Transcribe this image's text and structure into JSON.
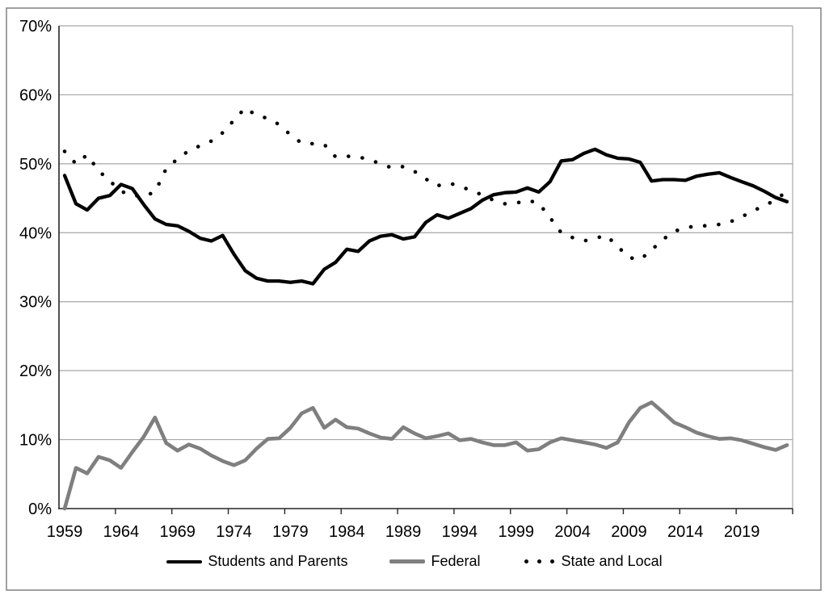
{
  "chart_data": {
    "type": "line",
    "title": "",
    "xlabel": "",
    "ylabel": "",
    "grid": "horizontal",
    "legend_position": "bottom",
    "x_axis": {
      "tick_labels": [
        "1959",
        "1964",
        "1969",
        "1974",
        "1979",
        "1984",
        "1989",
        "1994",
        "1999",
        "2004",
        "2009",
        "2014",
        "2019"
      ],
      "first_year": 1959,
      "last_year": 2023
    },
    "y_axis": {
      "tick_labels": [
        "0%",
        "10%",
        "20%",
        "30%",
        "40%",
        "50%",
        "60%",
        "70%"
      ],
      "min": 0,
      "max": 70,
      "tick_interval": 10,
      "unit": "%"
    },
    "years": [
      1959,
      1960,
      1961,
      1962,
      1963,
      1964,
      1965,
      1966,
      1967,
      1968,
      1969,
      1970,
      1971,
      1972,
      1973,
      1974,
      1975,
      1976,
      1977,
      1978,
      1979,
      1980,
      1981,
      1982,
      1983,
      1984,
      1985,
      1986,
      1987,
      1988,
      1989,
      1990,
      1991,
      1992,
      1993,
      1994,
      1995,
      1996,
      1997,
      1998,
      1999,
      2000,
      2001,
      2002,
      2003,
      2004,
      2005,
      2006,
      2007,
      2008,
      2009,
      2010,
      2011,
      2012,
      2013,
      2014,
      2015,
      2016,
      2017,
      2018,
      2019,
      2020,
      2021,
      2022,
      2023
    ],
    "series": [
      {
        "name": "Students and Parents",
        "color": "#000000",
        "line_style": "solid",
        "line_width": 4.3,
        "values": [
          48.3,
          44.2,
          43.3,
          45.0,
          45.4,
          47.0,
          46.4,
          44.1,
          42.0,
          41.2,
          41.0,
          40.2,
          39.2,
          38.8,
          39.6,
          36.9,
          34.5,
          33.4,
          33.0,
          33.0,
          32.8,
          33.0,
          32.6,
          34.7,
          35.7,
          37.6,
          37.3,
          38.8,
          39.5,
          39.7,
          39.1,
          39.4,
          41.5,
          42.6,
          42.1,
          42.8,
          43.5,
          44.7,
          45.5,
          45.8,
          45.9,
          46.5,
          45.9,
          47.4,
          50.4,
          50.6,
          51.5,
          52.1,
          51.3,
          50.8,
          50.7,
          50.2,
          47.5,
          47.7,
          47.7,
          47.6,
          48.2,
          48.5,
          48.7,
          48.0,
          47.4,
          46.8,
          46.0,
          45.1,
          44.5
        ]
      },
      {
        "name": "Federal",
        "color": "#7F7F7F",
        "line_style": "solid",
        "line_width": 4.6,
        "values": [
          0.0,
          5.9,
          5.1,
          7.5,
          7.0,
          5.9,
          8.2,
          10.4,
          13.2,
          9.5,
          8.4,
          9.3,
          8.7,
          7.7,
          6.9,
          6.3,
          7.0,
          8.7,
          10.1,
          10.2,
          11.7,
          13.8,
          14.6,
          11.7,
          12.9,
          11.8,
          11.6,
          10.9,
          10.3,
          10.1,
          11.8,
          10.9,
          10.2,
          10.5,
          10.9,
          9.9,
          10.1,
          9.6,
          9.2,
          9.2,
          9.6,
          8.4,
          8.6,
          9.6,
          10.2,
          9.9,
          9.6,
          9.3,
          8.8,
          9.6,
          12.5,
          14.6,
          15.4,
          14.0,
          12.5,
          11.8,
          11.0,
          10.5,
          10.1,
          10.2,
          9.9,
          9.4,
          8.9,
          8.5,
          9.2
        ]
      },
      {
        "name": "State and Local",
        "color": "#000000",
        "line_style": "dotted",
        "line_width": 4.6,
        "values": [
          51.8,
          50.0,
          51.3,
          49.0,
          47.5,
          46.0,
          45.4,
          45.3,
          45.9,
          49.3,
          50.7,
          51.9,
          52.6,
          53.3,
          54.5,
          56.3,
          58.1,
          57.0,
          56.6,
          55.7,
          54.2,
          53.0,
          52.9,
          52.8,
          51.0,
          51.1,
          51.0,
          50.6,
          50.0,
          49.4,
          49.6,
          48.9,
          47.8,
          46.8,
          47.2,
          46.8,
          46.1,
          45.5,
          44.7,
          44.2,
          44.3,
          44.7,
          44.3,
          42.2,
          40.0,
          39.3,
          38.8,
          39.2,
          39.6,
          38.0,
          36.4,
          36.1,
          37.5,
          39.0,
          40.2,
          40.7,
          41.0,
          41.0,
          41.2,
          41.6,
          42.3,
          43.2,
          43.9,
          44.8,
          46.0
        ]
      }
    ]
  },
  "colors": {
    "background": "#FFFFFF",
    "gridline": "#A6A6A6",
    "axis": "#262626",
    "outer_border": "#808080",
    "text": "#000000"
  }
}
